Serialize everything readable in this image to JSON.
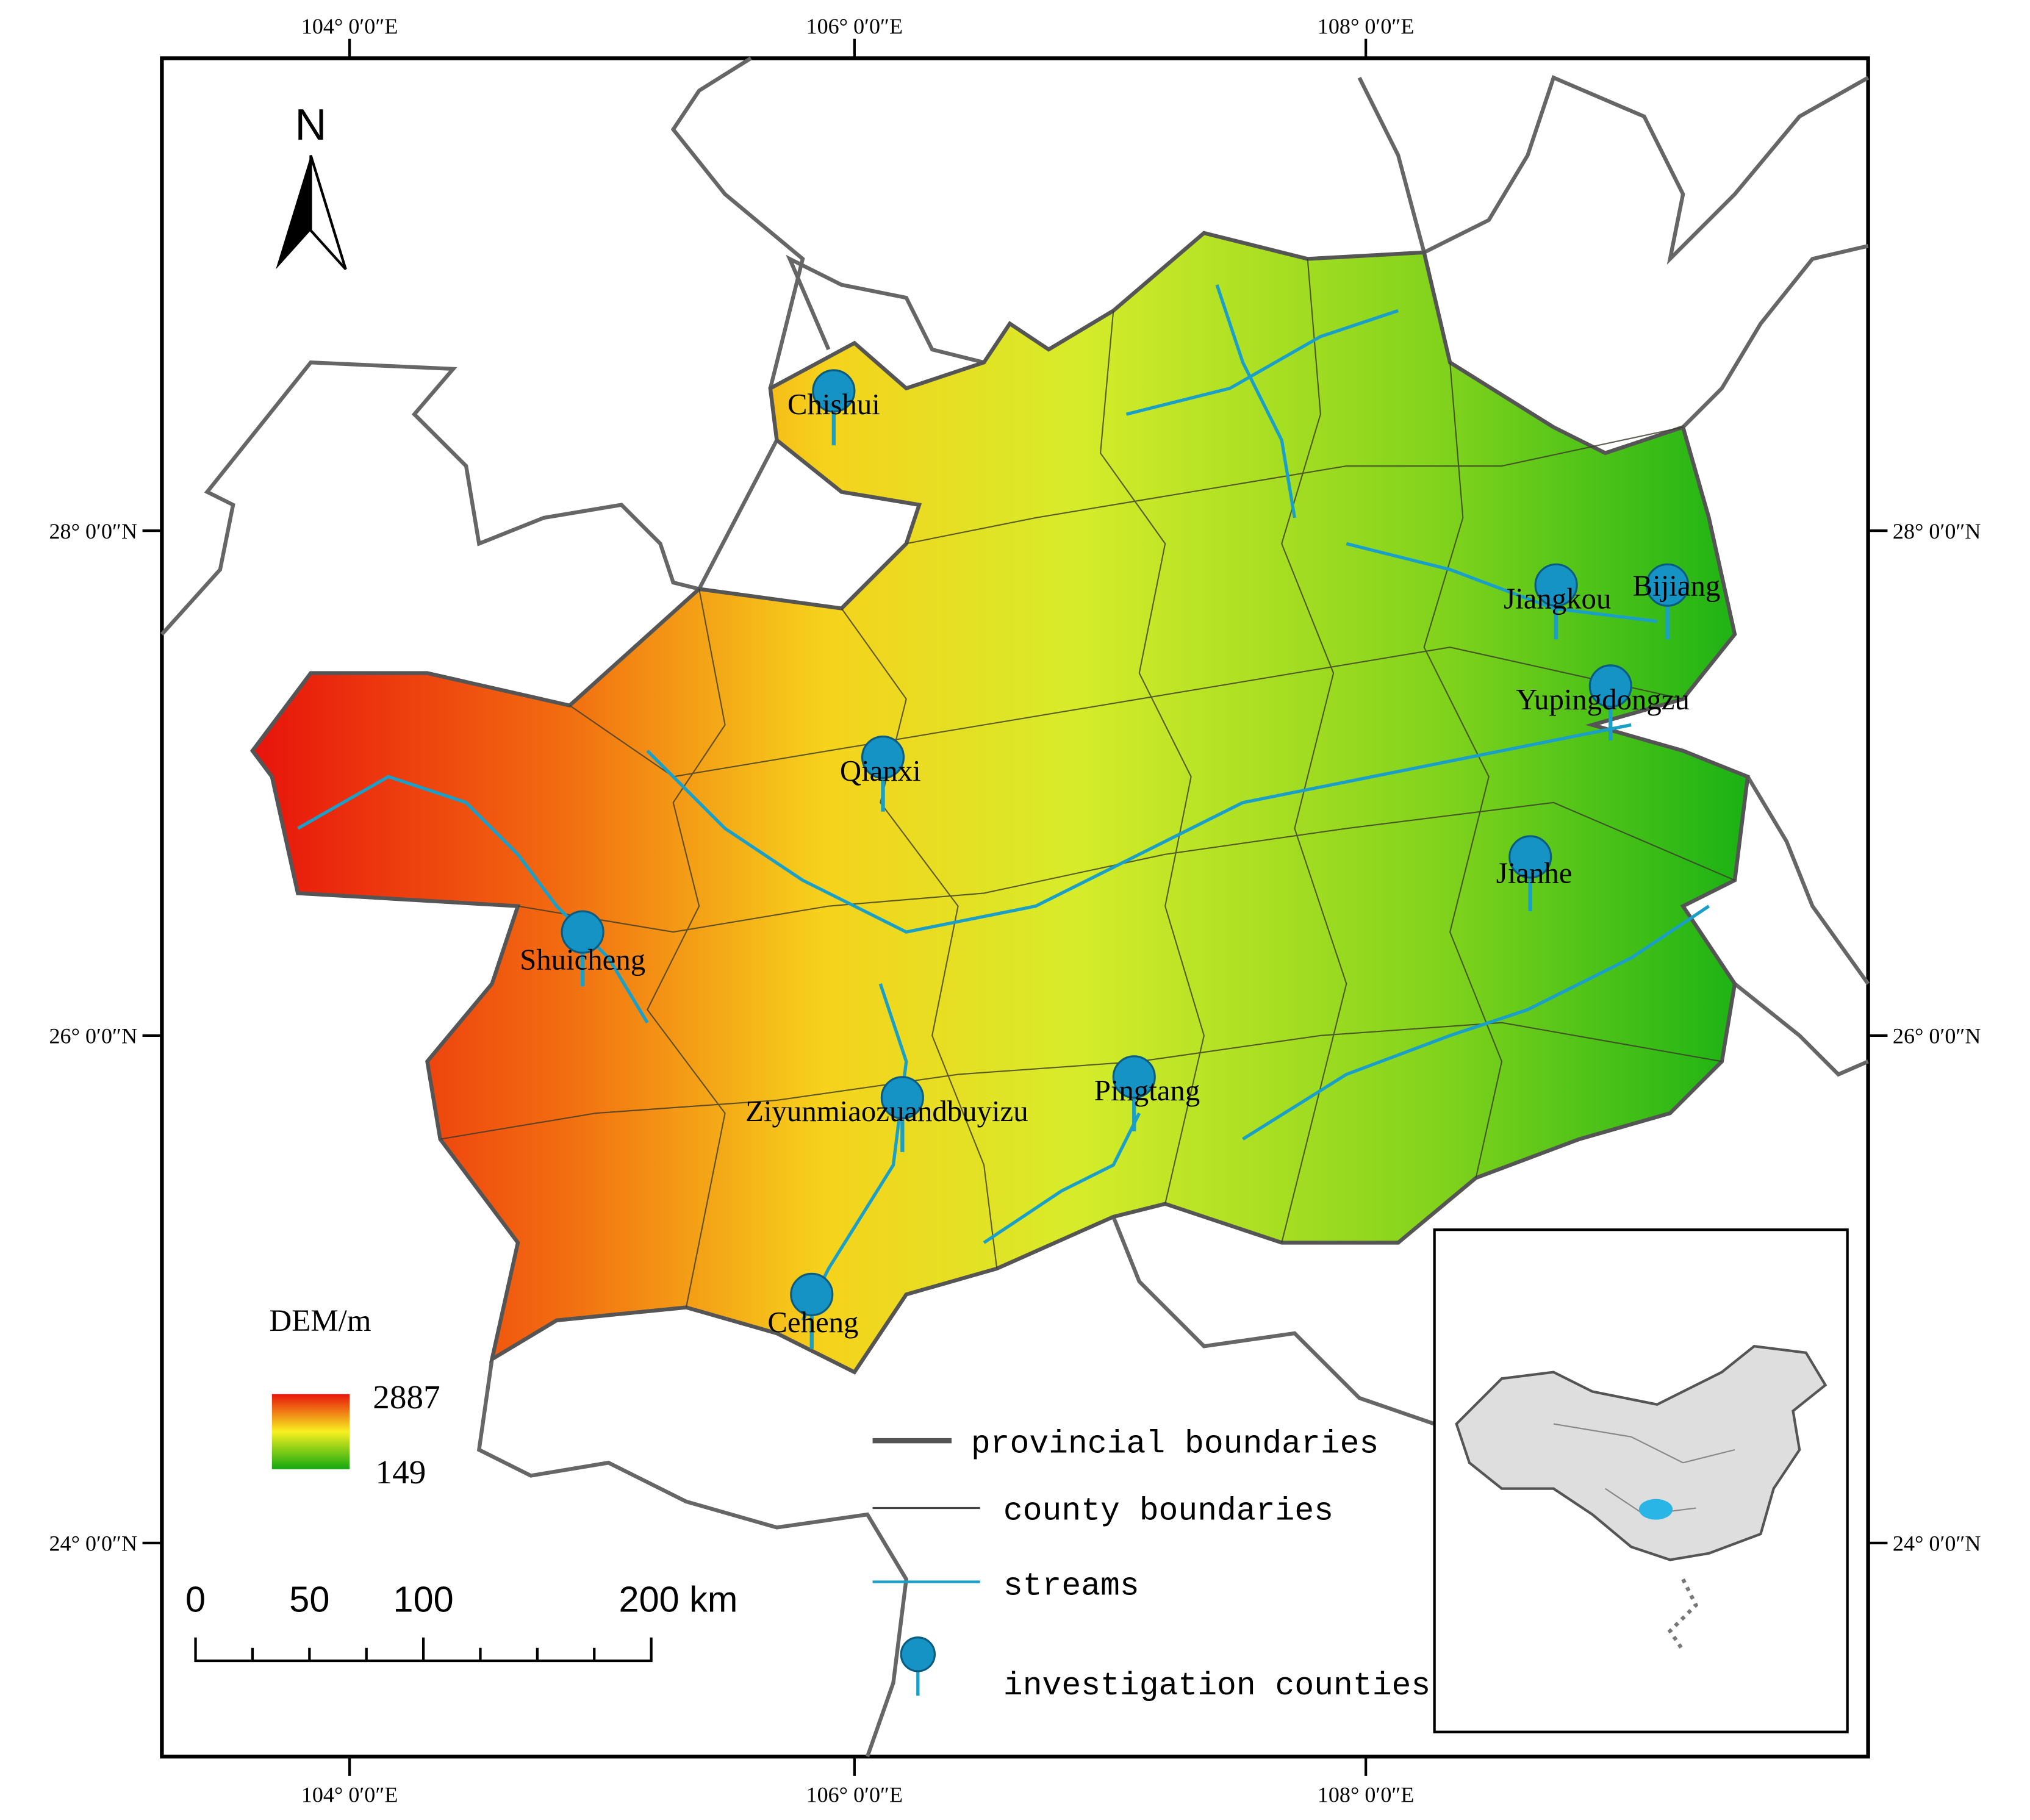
{
  "map": {
    "north_label": "N",
    "coordinates": {
      "longitudes": [
        "104° 0′0″E",
        "106° 0′0″E",
        "108° 0′0″E"
      ],
      "latitudes": [
        "28° 0′0″N",
        "26° 0′0″N",
        "24° 0′0″N"
      ]
    },
    "counties": [
      "Chishui",
      "Jiangkou",
      "Bijiang",
      "Yupingdongzu",
      "Qianxi",
      "Jianhe",
      "Shuicheng",
      "Pingtang",
      "Ziyunmiaozuandbuyizu",
      "Ceheng"
    ],
    "dem_legend": {
      "title": "DEM/m",
      "max": 2887,
      "min": 149
    },
    "legend": [
      "provincial boundaries",
      "county boundaries",
      "streams",
      "investigation counties"
    ],
    "scale_bar": [
      "0",
      "50",
      "100",
      "200 km"
    ]
  }
}
